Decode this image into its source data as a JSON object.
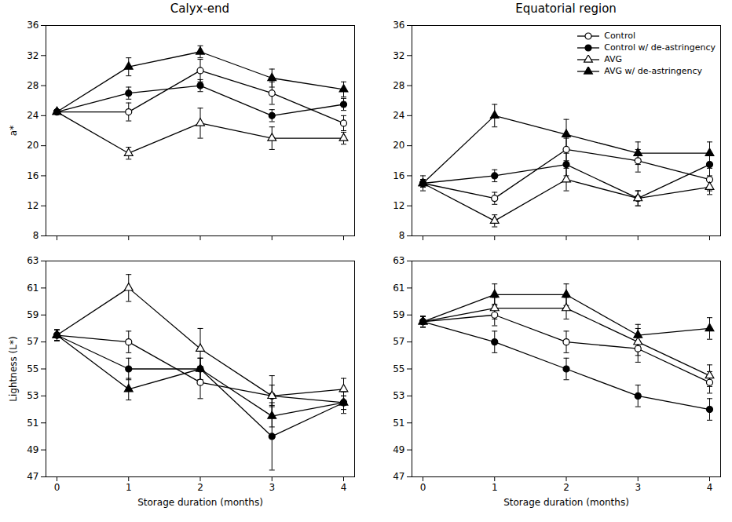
{
  "chart_data": [
    {
      "type": "line",
      "title": "Calyx-end",
      "ylabel": "a*",
      "x": [
        0,
        1,
        2,
        3,
        4
      ],
      "xlim": [
        0,
        4
      ],
      "xticks": [
        0,
        1,
        2,
        3,
        4
      ],
      "ylim": [
        8,
        36
      ],
      "yticks": [
        8,
        12,
        16,
        20,
        24,
        28,
        32,
        36
      ],
      "tick_labels": "y",
      "series": [
        {
          "name": "Control",
          "color": "black",
          "marker": "circle-open",
          "values": [
            24.5,
            24.5,
            30.0,
            27.0,
            23.0
          ],
          "errors": [
            0.3,
            1.2,
            1.5,
            1.5,
            1.0
          ]
        },
        {
          "name": "Control w/  de-astringency",
          "color": "black",
          "marker": "circle",
          "values": [
            24.5,
            27.0,
            28.0,
            24.0,
            25.5
          ],
          "errors": [
            0.3,
            0.8,
            0.8,
            0.8,
            0.8
          ]
        },
        {
          "name": "AVG",
          "color": "black",
          "marker": "triangle-open",
          "values": [
            24.5,
            19.0,
            23.0,
            21.0,
            21.0
          ],
          "errors": [
            0.3,
            0.8,
            2.0,
            1.5,
            0.8
          ]
        },
        {
          "name": "AVG w/ de-astringency",
          "color": "black",
          "marker": "triangle",
          "values": [
            24.5,
            30.5,
            32.5,
            29.0,
            27.5
          ],
          "errors": [
            0.3,
            1.2,
            0.8,
            1.2,
            1.0
          ]
        }
      ]
    },
    {
      "type": "line",
      "title": "Equatorial region",
      "x": [
        0,
        1,
        2,
        3,
        4
      ],
      "xlim": [
        0,
        4
      ],
      "xticks": [
        0,
        1,
        2,
        3,
        4
      ],
      "ylim": [
        8,
        36
      ],
      "yticks": [
        8,
        12,
        16,
        20,
        24,
        28,
        32,
        36
      ],
      "tick_labels": "y",
      "legend": "upper right",
      "series": [
        {
          "name": "Control",
          "color": "black",
          "marker": "circle-open",
          "values": [
            15.0,
            13.0,
            19.5,
            18.0,
            15.5
          ],
          "errors": [
            1.0,
            0.8,
            1.5,
            1.5,
            1.5
          ]
        },
        {
          "name": "Control w/  de-astringency",
          "color": "black",
          "marker": "circle",
          "values": [
            15.0,
            16.0,
            17.5,
            13.0,
            17.5
          ],
          "errors": [
            0.5,
            0.8,
            1.5,
            1.0,
            1.5
          ]
        },
        {
          "name": "AVG",
          "color": "black",
          "marker": "triangle-open",
          "values": [
            15.0,
            10.0,
            15.5,
            13.0,
            14.5
          ],
          "errors": [
            0.5,
            0.8,
            1.5,
            1.0,
            1.0
          ]
        },
        {
          "name": "AVG w/ de-astringency",
          "color": "black",
          "marker": "triangle",
          "values": [
            15.0,
            24.0,
            21.5,
            19.0,
            19.0
          ],
          "errors": [
            0.5,
            1.5,
            2.0,
            1.5,
            1.5
          ]
        }
      ]
    },
    {
      "type": "line",
      "xlabel": "Storage duration (months)",
      "ylabel": "Lightness (L*)",
      "x": [
        0,
        1,
        2,
        3,
        4
      ],
      "xlim": [
        0,
        4
      ],
      "xticks": [
        0,
        1,
        2,
        3,
        4
      ],
      "ylim": [
        47,
        63
      ],
      "yticks": [
        47,
        49,
        51,
        53,
        55,
        57,
        59,
        61,
        63
      ],
      "series": [
        {
          "name": "Control",
          "color": "black",
          "marker": "circle-open",
          "values": [
            57.5,
            57.0,
            54.0,
            53.0,
            52.5
          ],
          "errors": [
            0.4,
            0.8,
            1.2,
            1.5,
            0.8
          ]
        },
        {
          "name": "Control w/  de-astringency",
          "color": "black",
          "marker": "circle",
          "values": [
            57.5,
            55.0,
            55.0,
            50.0,
            52.5
          ],
          "errors": [
            0.4,
            0.8,
            0.8,
            2.5,
            0.5
          ]
        },
        {
          "name": "AVG",
          "color": "black",
          "marker": "triangle-open",
          "values": [
            57.5,
            61.0,
            56.5,
            53.0,
            53.5
          ],
          "errors": [
            0.4,
            1.0,
            1.5,
            0.8,
            0.8
          ]
        },
        {
          "name": "AVG w/ de-astringency",
          "color": "black",
          "marker": "triangle",
          "values": [
            57.5,
            53.5,
            55.0,
            51.5,
            52.5
          ],
          "errors": [
            0.4,
            0.8,
            0.8,
            0.8,
            0.5
          ]
        }
      ]
    },
    {
      "type": "line",
      "xlabel": "Storage duration (months)",
      "x": [
        0,
        1,
        2,
        3,
        4
      ],
      "xlim": [
        0,
        4
      ],
      "xticks": [
        0,
        1,
        2,
        3,
        4
      ],
      "ylim": [
        47,
        63
      ],
      "yticks": [
        47,
        49,
        51,
        53,
        55,
        57,
        59,
        61,
        63
      ],
      "series": [
        {
          "name": "Control",
          "color": "black",
          "marker": "circle-open",
          "values": [
            58.5,
            59.0,
            57.0,
            56.5,
            54.0
          ],
          "errors": [
            0.4,
            0.8,
            0.8,
            1.0,
            0.8
          ]
        },
        {
          "name": "Control w/  de-astringency",
          "color": "black",
          "marker": "circle",
          "values": [
            58.5,
            57.0,
            55.0,
            53.0,
            52.0
          ],
          "errors": [
            0.4,
            0.8,
            0.8,
            0.8,
            0.8
          ]
        },
        {
          "name": "AVG",
          "color": "black",
          "marker": "triangle-open",
          "values": [
            58.5,
            59.5,
            59.5,
            57.0,
            54.5
          ],
          "errors": [
            0.4,
            0.8,
            0.8,
            1.0,
            0.8
          ]
        },
        {
          "name": "AVG w/ de-astringency",
          "color": "black",
          "marker": "triangle",
          "values": [
            58.5,
            60.5,
            60.5,
            57.5,
            58.0
          ],
          "errors": [
            0.4,
            0.8,
            0.8,
            0.8,
            0.8
          ]
        }
      ]
    }
  ]
}
